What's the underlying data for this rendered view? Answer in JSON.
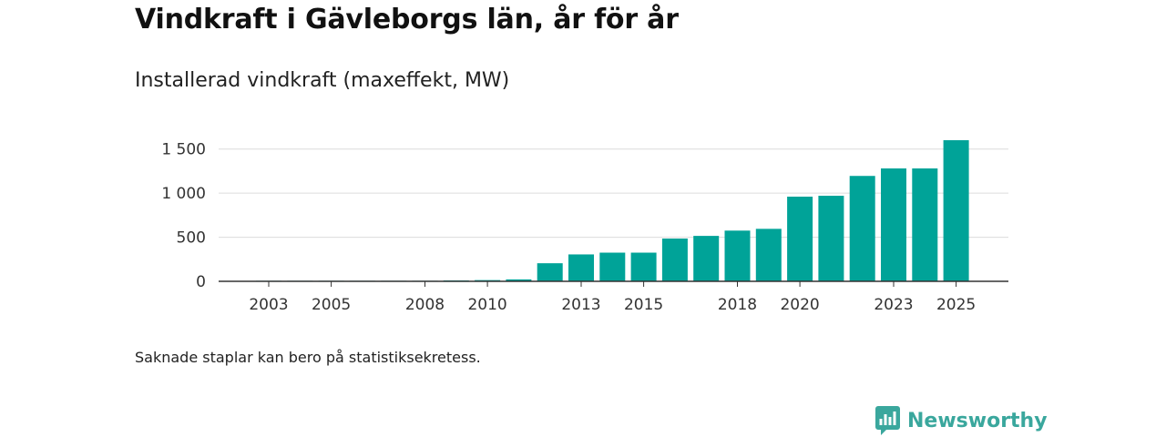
{
  "title": "Vindkraft i Gävleborgs län, år för år",
  "subtitle": "Installerad vindkraft (maxeffekt, MW)",
  "footnote": "Saknade staplar kan bero på statistiksekretess.",
  "brand": {
    "name": "Newsworthy",
    "icon": "newsworthy-logo-icon",
    "color": "#3aa79d"
  },
  "colors": {
    "bar": "#00a398",
    "grid": "#dcdcdc",
    "axis": "#333333"
  },
  "chart_data": {
    "type": "bar",
    "title": "Vindkraft i Gävleborgs län, år för år",
    "subtitle": "Installerad vindkraft (maxeffekt, MW)",
    "xlabel": "",
    "ylabel": "",
    "categories": [
      2003,
      2004,
      2005,
      2006,
      2007,
      2008,
      2009,
      2010,
      2011,
      2012,
      2013,
      2014,
      2015,
      2016,
      2017,
      2018,
      2019,
      2020,
      2021,
      2022,
      2023,
      2024,
      2025
    ],
    "values": [
      1,
      1,
      1,
      1,
      1,
      1,
      10,
      14,
      22,
      205,
      305,
      325,
      325,
      485,
      515,
      575,
      595,
      960,
      970,
      1195,
      1280,
      1280,
      1600
    ],
    "ylim": [
      0,
      1600
    ],
    "yticks": [
      0,
      500,
      1000,
      1500
    ],
    "ytick_labels": [
      "0",
      "500",
      "1 000",
      "1 500"
    ],
    "xtick_labels": [
      "2003",
      "2005",
      "2008",
      "2010",
      "2013",
      "2015",
      "2018",
      "2020",
      "2023",
      "2025"
    ],
    "grid": true,
    "legend": "none"
  }
}
